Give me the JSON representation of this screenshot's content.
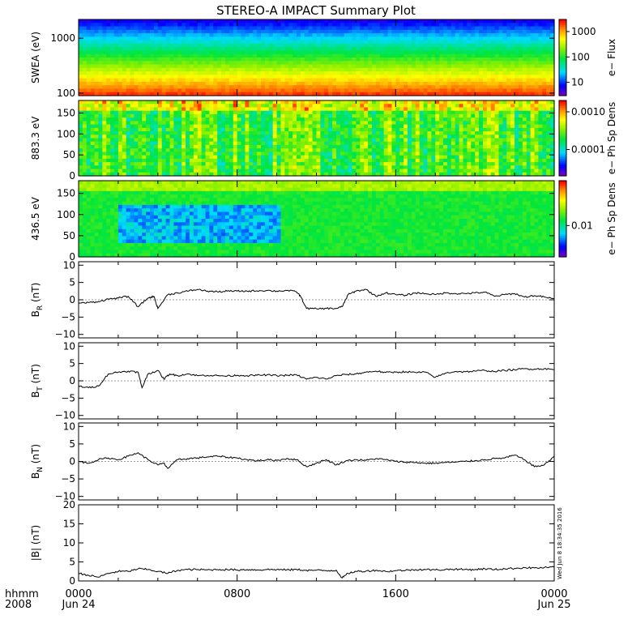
{
  "title": "STEREO-A IMPACT Summary Plot",
  "time_axis": {
    "row_label_1": "hhmm",
    "row_label_2": "2008",
    "ticks": [
      {
        "hhmm": "0000",
        "date": "Jun 24"
      },
      {
        "hhmm": "0800",
        "date": ""
      },
      {
        "hhmm": "1600",
        "date": ""
      },
      {
        "hhmm": "0000",
        "date": "Jun 25"
      }
    ],
    "range_hours": [
      0,
      24
    ]
  },
  "timestamp": "Wed Jun  8 18:34:35 2016",
  "chart_data": [
    {
      "type": "heatmap",
      "name": "swea",
      "ylabel": "SWEA (eV)",
      "y_scale": "log",
      "ylim": [
        90,
        2200
      ],
      "yticks": [
        "1000",
        "100"
      ],
      "yticks_values": [
        1000,
        100
      ],
      "colorbar": {
        "label": "e− Flux",
        "scale": "log",
        "ticks": [
          "1000",
          "100",
          "10"
        ],
        "tick_values": [
          1000,
          100,
          10
        ],
        "range": [
          3,
          3000
        ]
      },
      "note": "flux decreases with energy; high (red) near 100 eV, low (blue) above ~1500 eV"
    },
    {
      "type": "heatmap",
      "name": "pad_883",
      "ylabel": "883.3 eV",
      "ylim": [
        0,
        180
      ],
      "yticks": [
        "150",
        "100",
        "50",
        "0"
      ],
      "yticks_values": [
        150,
        100,
        50,
        0
      ],
      "colorbar": {
        "label": "e− Ph Sp Dens",
        "scale": "log",
        "ticks": [
          "0.0010",
          "0.0001"
        ],
        "tick_values": [
          0.001,
          0.0001
        ],
        "range": [
          2e-05,
          0.002
        ]
      }
    },
    {
      "type": "heatmap",
      "name": "pad_436",
      "ylabel": "436.5 eV",
      "ylim": [
        0,
        180
      ],
      "yticks": [
        "150",
        "100",
        "50",
        "0"
      ],
      "yticks_values": [
        150,
        100,
        50,
        0
      ],
      "colorbar": {
        "label": "e− Ph Sp Dens",
        "scale": "log",
        "ticks": [
          "0.01"
        ],
        "tick_values": [
          0.01
        ],
        "range": [
          0.002,
          0.1
        ]
      }
    },
    {
      "type": "line",
      "name": "br",
      "ylabel_main": "B",
      "ylabel_sub": "R",
      "ylabel_rest": " (nT)",
      "ylim": [
        -11,
        11
      ],
      "yticks": [
        "10",
        "5",
        "0",
        "−5",
        "−10"
      ],
      "yticks_values": [
        10,
        5,
        0,
        -5,
        -10
      ],
      "x": [
        0,
        0.5,
        1,
        1.5,
        2,
        2.5,
        3,
        3.5,
        3.8,
        4,
        4.5,
        5,
        5.5,
        6,
        6.5,
        7,
        7.5,
        8,
        8.5,
        9,
        9.5,
        10,
        10.5,
        11,
        11.2,
        11.5,
        12,
        12.5,
        13,
        13.3,
        13.6,
        14,
        14.5,
        15,
        15.5,
        16,
        16.5,
        17,
        17.5,
        18,
        18.5,
        19,
        19.5,
        20,
        20.5,
        21,
        21.5,
        22,
        22.5,
        23,
        23.5,
        24
      ],
      "y": [
        -1,
        -0.8,
        -0.5,
        0.2,
        0.5,
        1,
        -2,
        0.5,
        1,
        -2.5,
        1.5,
        2,
        2.5,
        3,
        2.5,
        2.3,
        2.5,
        2.5,
        2.5,
        2.6,
        2.7,
        2.5,
        2.7,
        2.3,
        1,
        -2.5,
        -2.6,
        -2.5,
        -2.5,
        -2,
        1.5,
        2.5,
        3,
        1,
        2,
        1.5,
        1.3,
        2,
        1.8,
        1.5,
        2,
        1.8,
        1.8,
        2,
        2.2,
        1,
        1.5,
        1.8,
        0.8,
        1.2,
        0.8,
        0.2
      ]
    },
    {
      "type": "line",
      "name": "bt",
      "ylabel_main": "B",
      "ylabel_sub": "T",
      "ylabel_rest": " (nT)",
      "ylim": [
        -11,
        11
      ],
      "yticks": [
        "10",
        "5",
        "0",
        "−5",
        "−10"
      ],
      "yticks_values": [
        10,
        5,
        0,
        -5,
        -10
      ],
      "x": [
        0,
        0.5,
        1,
        1.5,
        2,
        2.5,
        3,
        3.2,
        3.5,
        4,
        4.3,
        4.6,
        5,
        5.5,
        6,
        6.5,
        7,
        7.5,
        8,
        8.5,
        9,
        9.5,
        10,
        10.5,
        11,
        11.5,
        12,
        12.5,
        13,
        13.5,
        14,
        14.5,
        15,
        15.5,
        16,
        16.5,
        17,
        17.5,
        18,
        18.5,
        19,
        19.5,
        20,
        20.5,
        21,
        21.5,
        22,
        22.5,
        23,
        23.5,
        24
      ],
      "y": [
        -1.5,
        -2,
        -1.5,
        2,
        2.5,
        2.8,
        2.5,
        -2,
        2,
        3,
        0.5,
        2,
        1.5,
        2,
        1.5,
        1.6,
        1.5,
        1.4,
        1.6,
        1.5,
        1.6,
        1.7,
        1.5,
        1.6,
        1.7,
        0.5,
        1,
        0.5,
        1.5,
        1.8,
        2,
        2.5,
        2.8,
        2.4,
        2.5,
        2.6,
        2.4,
        2.5,
        1,
        2.2,
        2.7,
        2.6,
        2.8,
        3,
        2.7,
        3,
        3.2,
        3.5,
        3.4,
        3.5,
        3.2
      ]
    },
    {
      "type": "line",
      "name": "bn",
      "ylabel_main": "B",
      "ylabel_sub": "N",
      "ylabel_rest": " (nT)",
      "ylim": [
        -11,
        11
      ],
      "yticks": [
        "10",
        "5",
        "0",
        "−5",
        "−10"
      ],
      "yticks_values": [
        10,
        5,
        0,
        -5,
        -10
      ],
      "x": [
        0,
        0.5,
        1,
        1.5,
        2,
        2.5,
        3,
        3.5,
        4,
        4.3,
        4.5,
        5,
        5.5,
        6,
        6.5,
        7,
        7.5,
        8,
        8.5,
        9,
        9.5,
        10,
        10.5,
        11,
        11.5,
        12,
        12.5,
        13,
        13.5,
        14,
        14.5,
        15,
        15.5,
        16,
        16.5,
        17,
        17.5,
        18,
        18.5,
        19,
        19.5,
        20,
        20.5,
        21,
        21.5,
        22,
        22.5,
        23,
        23.5,
        24
      ],
      "y": [
        0,
        -0.5,
        0.5,
        1,
        0.5,
        1.5,
        2.5,
        0.5,
        -1,
        -0.5,
        -2,
        0.5,
        0.8,
        1,
        1.3,
        1.5,
        1.2,
        1,
        0.5,
        0.2,
        0.5,
        0.3,
        0.8,
        0.5,
        -1.5,
        -0.5,
        0.5,
        -1,
        0.2,
        0.5,
        0.3,
        0.8,
        0.5,
        0,
        -0.2,
        -0.3,
        -0.5,
        -0.5,
        -0.3,
        -0.2,
        0,
        0.2,
        0.5,
        0.8,
        1,
        1.8,
        0.5,
        -1.5,
        -1,
        1.5
      ]
    },
    {
      "type": "line",
      "name": "bmag",
      "ylabel_main": "|B| (nT)",
      "ylim": [
        0,
        20
      ],
      "yticks": [
        "20",
        "15",
        "10",
        "5",
        "0"
      ],
      "yticks_values": [
        20,
        15,
        10,
        5,
        0
      ],
      "x": [
        0,
        0.5,
        1,
        1.5,
        2,
        2.5,
        3,
        3.5,
        4,
        4.5,
        5,
        5.5,
        6,
        6.5,
        7,
        7.5,
        8,
        8.5,
        9,
        9.5,
        10,
        10.5,
        11,
        11.5,
        12,
        12.5,
        13,
        13.3,
        13.6,
        14,
        14.5,
        15,
        15.5,
        16,
        16.5,
        17,
        17.5,
        18,
        18.5,
        19,
        19.5,
        20,
        20.5,
        21,
        21.5,
        22,
        22.5,
        23,
        23.5,
        24
      ],
      "y": [
        2,
        1.5,
        1,
        2,
        2.5,
        2.5,
        3.2,
        3,
        2.5,
        2,
        2.8,
        3,
        3,
        2.9,
        3,
        3,
        2.9,
        3,
        2.9,
        3,
        3,
        2.9,
        3,
        2.8,
        2.8,
        2.7,
        2.8,
        0.8,
        2,
        2.5,
        2.6,
        2.8,
        2.5,
        2.7,
        2.8,
        3,
        3,
        2.9,
        3,
        3.1,
        3,
        3,
        3.2,
        3,
        3.2,
        3.3,
        3.5,
        3.4,
        3.5,
        3.6
      ]
    }
  ]
}
